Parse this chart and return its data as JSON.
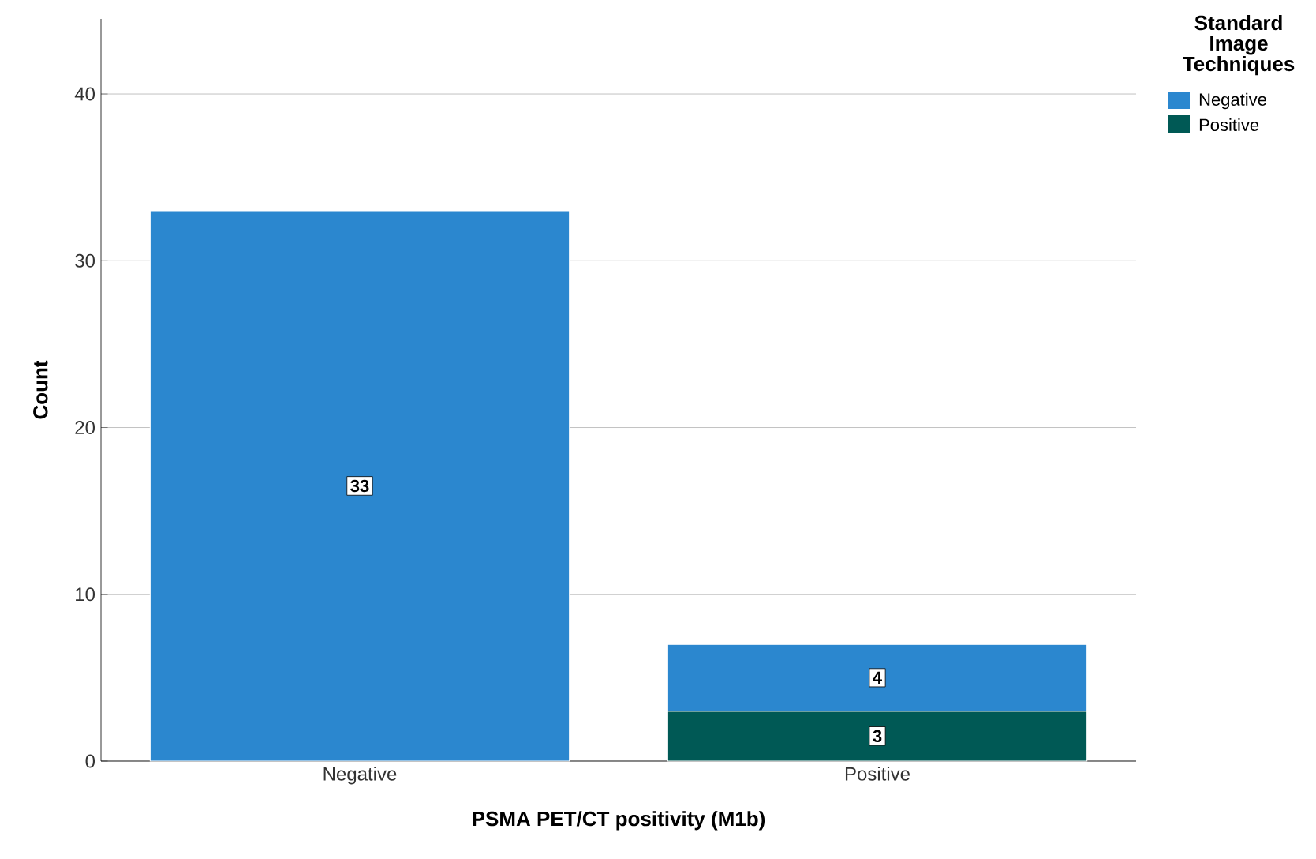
{
  "chart_data": {
    "type": "bar",
    "stacked": true,
    "xlabel": "PSMA PET/CT positivity (M1b)",
    "ylabel": "Count",
    "categories": [
      "Negative",
      "Positive"
    ],
    "series": [
      {
        "name": "Positive",
        "color": "#005955",
        "values": [
          null,
          3
        ]
      },
      {
        "name": "Negative",
        "color": "#2b87cf",
        "values": [
          33,
          4
        ]
      }
    ],
    "ylim": [
      0,
      44.5
    ],
    "yticks": [
      0,
      10,
      20,
      30,
      40
    ],
    "grid": "y",
    "data_labels": true,
    "legend": "top right",
    "legend_title": "Standard Image Techniques"
  }
}
